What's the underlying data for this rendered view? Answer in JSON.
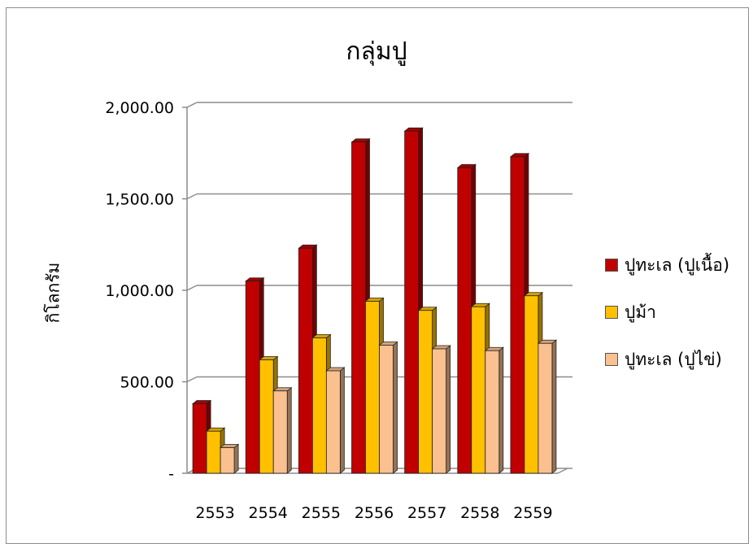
{
  "chart_data": {
    "type": "bar",
    "title": "กลุ่มปู",
    "ylabel": "กิโลกรัม",
    "xlabel": "",
    "categories": [
      "2553",
      "2554",
      "2555",
      "2556",
      "2557",
      "2558",
      "2559"
    ],
    "series": [
      {
        "name": "ปูทะเล (ปูเนื้อ)",
        "values": [
          380,
          1050,
          1230,
          1810,
          1870,
          1670,
          1730
        ],
        "color": "#c00000"
      },
      {
        "name": "ปูม้า",
        "values": [
          230,
          620,
          740,
          940,
          890,
          910,
          970
        ],
        "color": "#ffc000"
      },
      {
        "name": "ปูทะเล (ปูไข่)",
        "values": [
          140,
          450,
          560,
          700,
          680,
          670,
          710
        ],
        "color": "#fac090"
      }
    ],
    "ylim": [
      0,
      2000
    ],
    "yticks": [
      {
        "value": 0,
        "label": "-"
      },
      {
        "value": 500,
        "label": "500.00"
      },
      {
        "value": 1000,
        "label": "1,000.00"
      },
      {
        "value": 1500,
        "label": "1,500.00"
      },
      {
        "value": 2000,
        "label": "2,000.00"
      }
    ],
    "grid": true,
    "legend_position": "right"
  }
}
